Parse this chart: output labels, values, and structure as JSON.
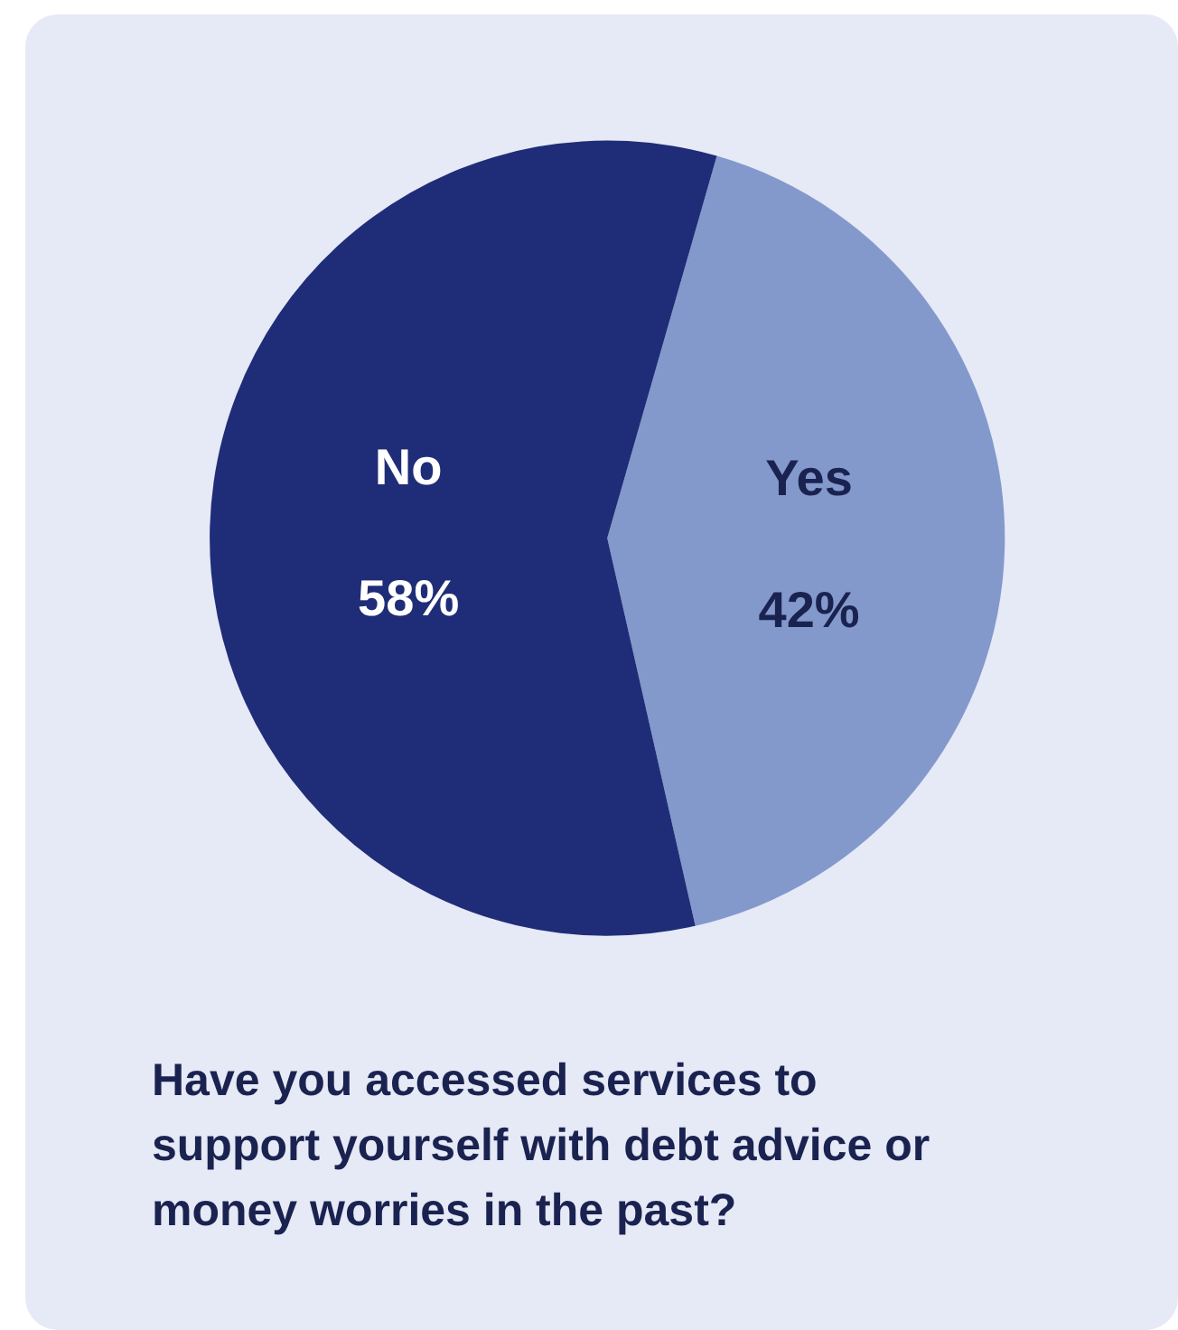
{
  "chart_data": {
    "type": "pie",
    "title": "Have you accessed services to support yourself with debt advice or money worries in the past?",
    "categories": [
      "Yes",
      "No"
    ],
    "values": [
      42,
      58
    ],
    "value_labels": [
      "42%",
      "58%"
    ],
    "colors": [
      "#8399cc",
      "#1f2d78"
    ]
  }
}
